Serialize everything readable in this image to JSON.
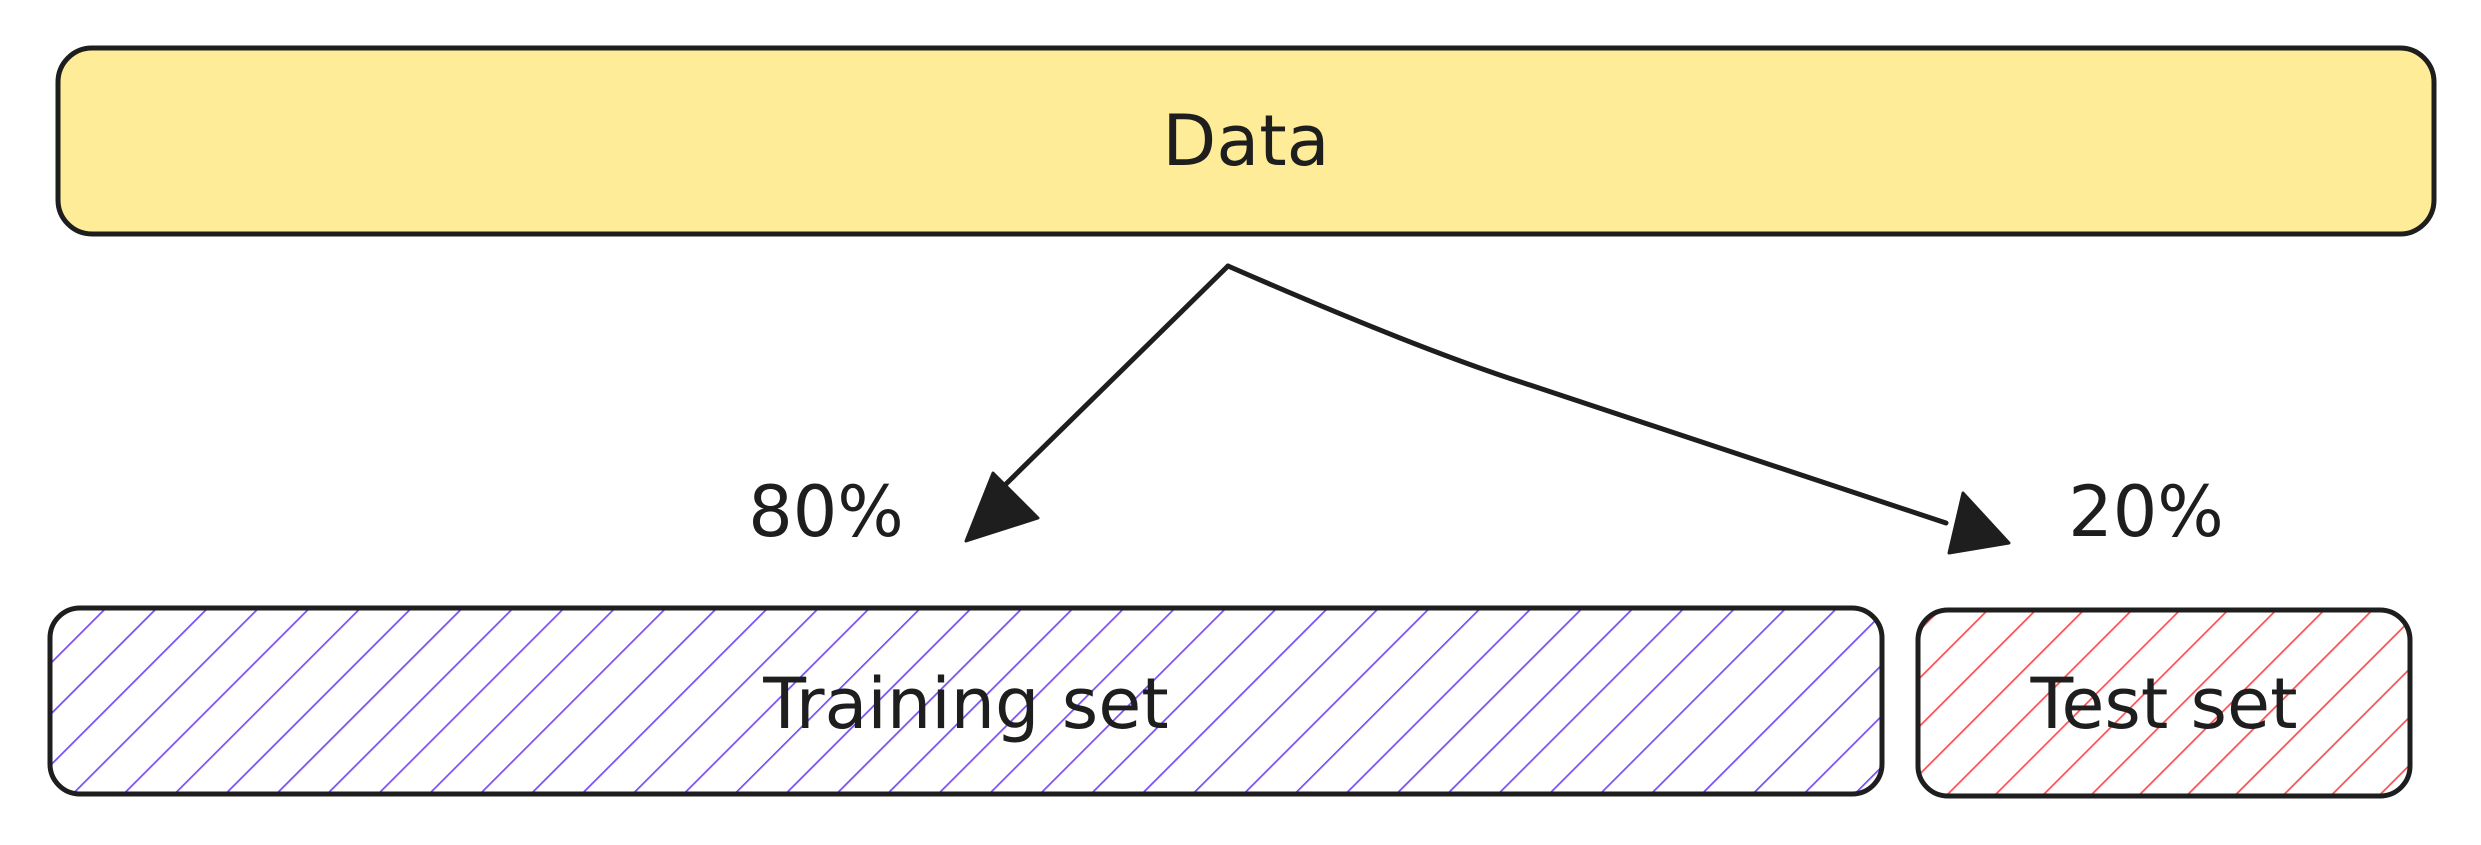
{
  "diagram": {
    "source": {
      "label": "Data",
      "fill": "#ffec99"
    },
    "splits": [
      {
        "name": "training",
        "label": "Training set",
        "percent_label": "80%",
        "share": 0.8,
        "hatch_color": "#7950f2"
      },
      {
        "name": "test",
        "label": "Test set",
        "percent_label": "20%",
        "share": 0.2,
        "hatch_color": "#fa5252"
      }
    ],
    "stroke_color": "#1e1e1e"
  }
}
